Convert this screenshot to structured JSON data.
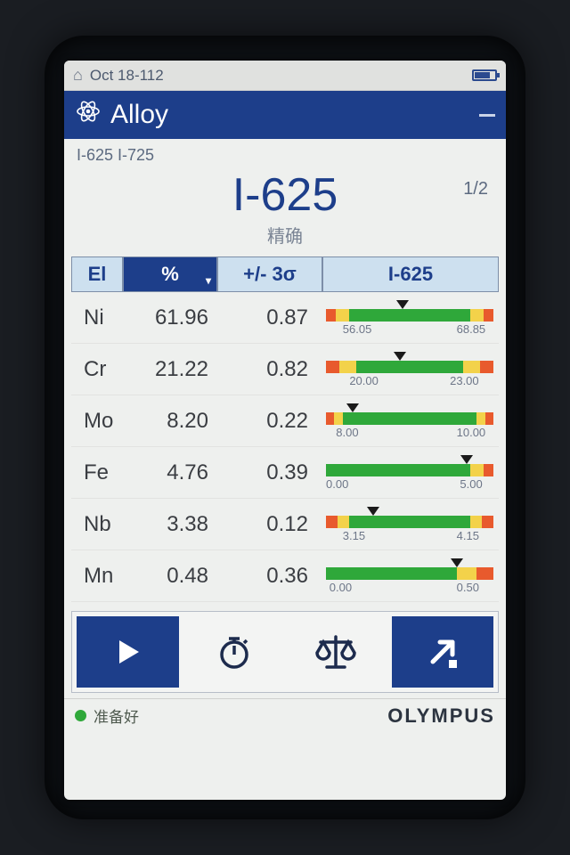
{
  "colors": {
    "navy": "#1d3e8a",
    "header_cell": "#cde0ef",
    "bg": "#eef0ee",
    "range_red": "#e85a2d",
    "range_yellow": "#f3d24a",
    "range_green": "#2fa83a",
    "text_muted": "#5c6a80"
  },
  "status": {
    "date": "Oct 18-112"
  },
  "title": {
    "app": "Alloy"
  },
  "candidates": {
    "text": "I-625 I-725"
  },
  "result": {
    "id": "I-625",
    "pager": "1/2",
    "quality": "精确"
  },
  "columns": {
    "el": "El",
    "percent": "%",
    "sigma": "+/- 3σ",
    "ref": "I-625"
  },
  "rows": [
    {
      "el": "Ni",
      "pc": "61.96",
      "sig": "0.87",
      "range": {
        "min": "56.05",
        "max": "68.85",
        "segs": [
          [
            "#e85a2d",
            6
          ],
          [
            "#f3d24a",
            8
          ],
          [
            "#2fa83a",
            72
          ],
          [
            "#f3d24a",
            8
          ],
          [
            "#e85a2d",
            6
          ]
        ],
        "pointer_pct": 46,
        "lab_min_pct": 10,
        "lab_max_pct": 78
      }
    },
    {
      "el": "Cr",
      "pc": "21.22",
      "sig": "0.82",
      "range": {
        "min": "20.00",
        "max": "23.00",
        "segs": [
          [
            "#e85a2d",
            8
          ],
          [
            "#f3d24a",
            10
          ],
          [
            "#2fa83a",
            64
          ],
          [
            "#f3d24a",
            10
          ],
          [
            "#e85a2d",
            8
          ]
        ],
        "pointer_pct": 44,
        "lab_min_pct": 14,
        "lab_max_pct": 74
      }
    },
    {
      "el": "Mo",
      "pc": "8.20",
      "sig": "0.22",
      "range": {
        "min": "8.00",
        "max": "10.00",
        "segs": [
          [
            "#e85a2d",
            5
          ],
          [
            "#f3d24a",
            5
          ],
          [
            "#2fa83a",
            80
          ],
          [
            "#f3d24a",
            5
          ],
          [
            "#e85a2d",
            5
          ]
        ],
        "pointer_pct": 16,
        "lab_min_pct": 6,
        "lab_max_pct": 78
      }
    },
    {
      "el": "Fe",
      "pc": "4.76",
      "sig": "0.39",
      "range": {
        "min": "0.00",
        "max": "5.00",
        "segs": [
          [
            "#2fa83a",
            86
          ],
          [
            "#f3d24a",
            8
          ],
          [
            "#e85a2d",
            6
          ]
        ],
        "pointer_pct": 84,
        "lab_min_pct": 0,
        "lab_max_pct": 80
      }
    },
    {
      "el": "Nb",
      "pc": "3.38",
      "sig": "0.12",
      "range": {
        "min": "3.15",
        "max": "4.15",
        "segs": [
          [
            "#e85a2d",
            7
          ],
          [
            "#f3d24a",
            7
          ],
          [
            "#2fa83a",
            72
          ],
          [
            "#f3d24a",
            7
          ],
          [
            "#e85a2d",
            7
          ]
        ],
        "pointer_pct": 28,
        "lab_min_pct": 10,
        "lab_max_pct": 78
      }
    },
    {
      "el": "Mn",
      "pc": "0.48",
      "sig": "0.36",
      "range": {
        "min": "0.00",
        "max": "0.50",
        "segs": [
          [
            "#2fa83a",
            78
          ],
          [
            "#f3d24a",
            12
          ],
          [
            "#e85a2d",
            10
          ]
        ],
        "pointer_pct": 78,
        "lab_min_pct": 2,
        "lab_max_pct": 78
      }
    }
  ],
  "footer": {
    "status": "准备好",
    "brand": "OLYMPUS"
  }
}
